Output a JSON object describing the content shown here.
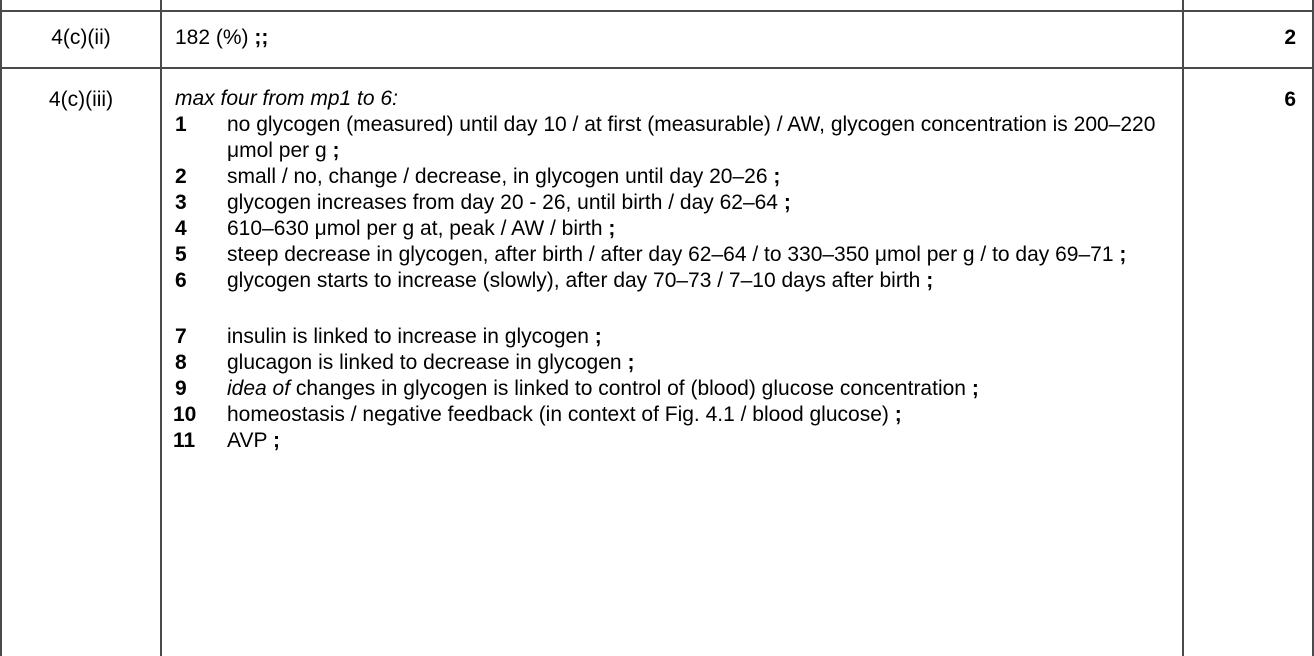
{
  "rows": [
    {
      "question": "4(c)(ii)",
      "answer_text": "182 (%)",
      "answer_suffix": ";;",
      "marks": "2"
    },
    {
      "question": "4(c)(iii)",
      "intro": "max four from mp1 to 6:",
      "marks": "6",
      "points": [
        {
          "num": "1",
          "text": "no glycogen (measured) until day 10 / at first (measurable) / AW, glycogen concentration is 200–220 μmol per g",
          "tail": ";"
        },
        {
          "num": "2",
          "text": "small / no, change / decrease, in glycogen until day 20–26",
          "tail": ";"
        },
        {
          "num": "3",
          "text": "glycogen increases from day 20 - 26, until birth / day 62–64",
          "tail": ";"
        },
        {
          "num": "4",
          "text": "610–630 μmol per g at, peak / AW / birth",
          "tail": ";"
        },
        {
          "num": "5",
          "text": "steep decrease in glycogen, after birth / after day 62–64 / to 330–350 μmol per g / to day 69–71",
          "tail": ";"
        },
        {
          "num": "6",
          "text": "glycogen starts to increase (slowly), after day 70–73 / 7–10 days after birth",
          "tail": ";"
        },
        {
          "num": "7",
          "text": "insulin is linked to increase in glycogen",
          "tail": ";"
        },
        {
          "num": "8",
          "text": "glucagon is linked to decrease in glycogen",
          "tail": ";"
        },
        {
          "num": "9",
          "italic_prefix": "idea of",
          "text": " changes in glycogen is linked to control of (blood) glucose concentration",
          "tail": ";"
        },
        {
          "num": "10",
          "text": "homeostasis / negative feedback (in context of Fig. 4.1 / blood glucose)",
          "tail": ";"
        },
        {
          "num": "11",
          "text": "AVP",
          "tail": ";"
        }
      ]
    }
  ]
}
